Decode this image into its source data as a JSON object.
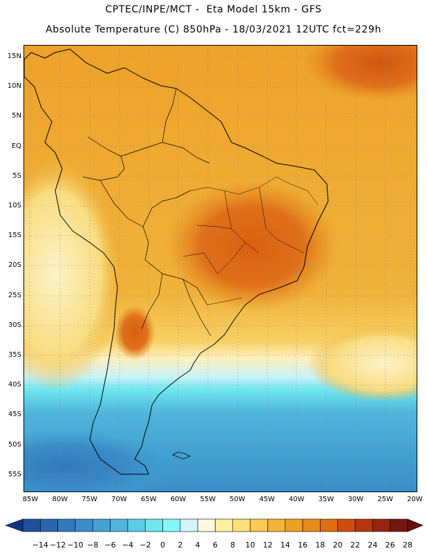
{
  "header": {
    "line1": "CPTEC/INPE/MCT -  Eta Model 15km - GFS",
    "line2": "Absolute Temperature (C) 850hPa - 18/03/2021 12UTC fct=229h"
  },
  "map": {
    "region": "South America",
    "lat_labels": [
      "15N",
      "10N",
      "5N",
      "EQ",
      "5S",
      "10S",
      "15S",
      "20S",
      "25S",
      "30S",
      "35S",
      "40S",
      "45S",
      "50S",
      "55S"
    ],
    "lon_labels": [
      "85W",
      "80W",
      "75W",
      "70W",
      "65W",
      "60W",
      "55W",
      "50W",
      "45W",
      "40W",
      "35W",
      "30W",
      "25W",
      "20W"
    ]
  },
  "colorbar": {
    "labels": [
      "-14",
      "-12",
      "-10",
      "-8",
      "-6",
      "-4",
      "-2",
      "0",
      "2",
      "4",
      "6",
      "8",
      "10",
      "12",
      "14",
      "16",
      "18",
      "20",
      "22",
      "24",
      "26",
      "28"
    ],
    "colors": [
      "#1f4e9a",
      "#2a66ad",
      "#3279bb",
      "#3a8dc8",
      "#45a3d4",
      "#50b6dc",
      "#5ccbe6",
      "#6ee6ef",
      "#86f7f7",
      "#d2f5fb",
      "#fff8e0",
      "#fff0a0",
      "#fde07a",
      "#f8cb55",
      "#f1b33a",
      "#eca026",
      "#e68a1c",
      "#e06d12",
      "#cd4d0f",
      "#b6340c",
      "#962410",
      "#76160f"
    ],
    "left_arrow_color": "#14357e",
    "right_arrow_color": "#6b0f0f"
  }
}
